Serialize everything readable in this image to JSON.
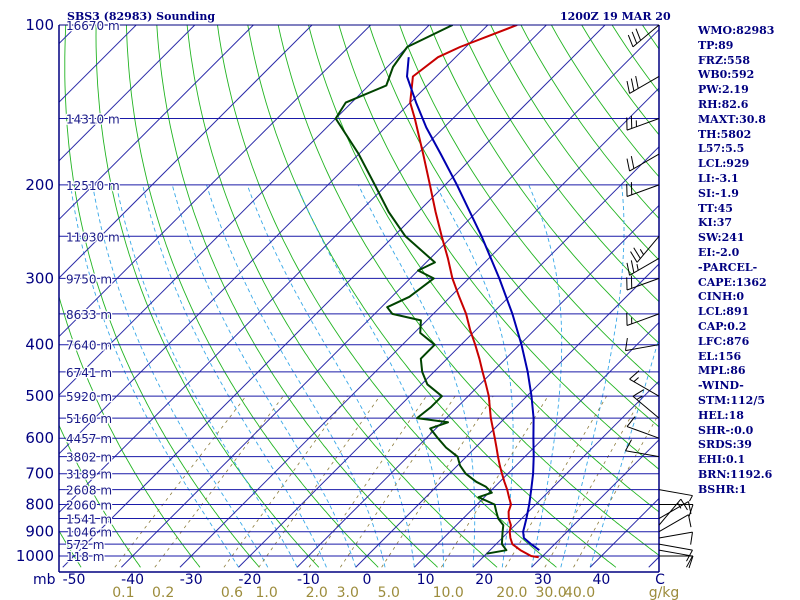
{
  "header": {
    "station": "SBS3 (82983) Sounding",
    "time": "1200Z 19 MAR 20"
  },
  "colors": {
    "frame": "#000080",
    "isobar": "#1a1aa8",
    "isotherm": "#2a2aa8",
    "dry_adiabat": "#22b422",
    "moist_adiabat": "#38a8e8",
    "mixing_ratio": "#8c7c3c",
    "temperature": "#c80000",
    "dewpoint": "#004400",
    "parcel": "#0000b0",
    "wind": "#000000",
    "label_height": "#1a1a88",
    "label_mixing": "#9c8c3c"
  },
  "axes": {
    "units_label": "mb",
    "mixing_unit": "g/kg"
  },
  "side_panel": [
    "WMO:82983",
    "TP:89",
    "FRZ:558",
    "WB0:592",
    "PW:2.19",
    "RH:82.6",
    "MAXT:30.8",
    "TH:5802",
    "L57:5.5",
    "LCL:929",
    "LI:-3.1",
    "SI:-1.9",
    "TT:45",
    "KI:37",
    "SW:241",
    "EI:-2.0",
    "-PARCEL-",
    "CAPE:1362",
    "CINH:0",
    "LCL:891",
    "CAP:0.2",
    "LFC:876",
    "EL:156",
    "MPL:86",
    "-WIND-",
    "STM:112/5",
    "HEL:18",
    "SHR-:0.0",
    "SRDS:39",
    "EHI:0.1",
    "BRN:1192.6",
    "BSHR:1"
  ],
  "chart_data": {
    "type": "skew-t",
    "title": "SBS3 (82983) Sounding",
    "subtitle": "1200Z 19 MAR 20",
    "pressure_axis": {
      "label": "mb",
      "range": [
        1000,
        100
      ],
      "scale": "log",
      "ticks": [
        100,
        200,
        300,
        400,
        500,
        600,
        700,
        800,
        900,
        1000
      ]
    },
    "temperature_axis": {
      "unit": "C",
      "ticks": [
        -50,
        -40,
        -30,
        -20,
        -10,
        0,
        10,
        20,
        30,
        40
      ],
      "tick_labels": [
        "-50",
        "-40",
        "-30",
        "-20",
        "-10",
        "0",
        "10",
        "20",
        "30",
        "40"
      ],
      "skew_deg": 45
    },
    "mixing_ratio_axis": {
      "unit": "g/kg",
      "values": [
        0.1,
        0.2,
        0.6,
        1.0,
        2.0,
        3.0,
        5.0,
        10.0,
        20.0,
        30.0,
        40.0
      ],
      "labels": [
        "0.1",
        "0.2",
        "0.6",
        "1.0",
        "2.0",
        "3.0",
        "5.0",
        "10.0",
        "20.0",
        "30.0",
        "40.0"
      ]
    },
    "height_labels": [
      {
        "p": 100,
        "label": "16670 m"
      },
      {
        "p": 150,
        "label": "14310 m"
      },
      {
        "p": 200,
        "label": "12510 m"
      },
      {
        "p": 250,
        "label": "11030 m"
      },
      {
        "p": 300,
        "label": "9750 m"
      },
      {
        "p": 350,
        "label": "8633 m"
      },
      {
        "p": 400,
        "label": "7640 m"
      },
      {
        "p": 450,
        "label": "6741 m"
      },
      {
        "p": 500,
        "label": "5920 m"
      },
      {
        "p": 550,
        "label": "5160 m"
      },
      {
        "p": 600,
        "label": "4457 m"
      },
      {
        "p": 650,
        "label": "3802 m"
      },
      {
        "p": 700,
        "label": "3189 m"
      },
      {
        "p": 750,
        "label": "2608 m"
      },
      {
        "p": 800,
        "label": "2060 m"
      },
      {
        "p": 850,
        "label": "1541 m"
      },
      {
        "p": 900,
        "label": "1046 m"
      },
      {
        "p": 950,
        "label": "572 m"
      },
      {
        "p": 1000,
        "label": "118 m"
      }
    ],
    "series": [
      {
        "name": "Temperature",
        "points": [
          [
            1005,
            29.5
          ],
          [
            1000,
            28.0
          ],
          [
            975,
            25.2
          ],
          [
            950,
            22.8
          ],
          [
            925,
            21.4
          ],
          [
            900,
            20.2
          ],
          [
            875,
            19.3
          ],
          [
            850,
            17.8
          ],
          [
            825,
            16.6
          ],
          [
            800,
            15.8
          ],
          [
            775,
            14.2
          ],
          [
            750,
            12.6
          ],
          [
            725,
            10.8
          ],
          [
            700,
            9.0
          ],
          [
            675,
            7.2
          ],
          [
            650,
            5.4
          ],
          [
            625,
            3.6
          ],
          [
            600,
            1.7
          ],
          [
            575,
            -0.3
          ],
          [
            550,
            -2.4
          ],
          [
            525,
            -4.4
          ],
          [
            500,
            -6.5
          ],
          [
            475,
            -9.0
          ],
          [
            450,
            -11.7
          ],
          [
            425,
            -14.5
          ],
          [
            400,
            -17.6
          ],
          [
            375,
            -21.0
          ],
          [
            350,
            -24.4
          ],
          [
            325,
            -28.5
          ],
          [
            300,
            -32.8
          ],
          [
            275,
            -37.0
          ],
          [
            250,
            -41.8
          ],
          [
            225,
            -47.0
          ],
          [
            200,
            -52.6
          ],
          [
            175,
            -59.0
          ],
          [
            150,
            -66.5
          ],
          [
            140,
            -70.0
          ],
          [
            125,
            -74.0
          ],
          [
            115,
            -73.0
          ],
          [
            110,
            -71.0
          ],
          [
            100,
            -65.0
          ]
        ]
      },
      {
        "name": "Dewpoint",
        "points": [
          [
            990,
            20.0
          ],
          [
            975,
            22.8
          ],
          [
            950,
            21.0
          ],
          [
            925,
            20.0
          ],
          [
            900,
            19.0
          ],
          [
            875,
            18.0
          ],
          [
            850,
            16.0
          ],
          [
            825,
            14.5
          ],
          [
            800,
            13.0
          ],
          [
            775,
            9.0
          ],
          [
            760,
            10.5
          ],
          [
            740,
            8.4
          ],
          [
            725,
            6.0
          ],
          [
            700,
            2.8
          ],
          [
            675,
            0.4
          ],
          [
            650,
            -1.5
          ],
          [
            625,
            -5.0
          ],
          [
            600,
            -8.0
          ],
          [
            575,
            -11.0
          ],
          [
            560,
            -9.0
          ],
          [
            550,
            -15.0
          ],
          [
            525,
            -14.5
          ],
          [
            500,
            -14.5
          ],
          [
            475,
            -19.0
          ],
          [
            450,
            -22.0
          ],
          [
            425,
            -24.5
          ],
          [
            400,
            -24.5
          ],
          [
            380,
            -29.0
          ],
          [
            360,
            -31.0
          ],
          [
            350,
            -37.0
          ],
          [
            340,
            -39.0
          ],
          [
            325,
            -37.0
          ],
          [
            300,
            -36.0
          ],
          [
            290,
            -40.0
          ],
          [
            280,
            -38.5
          ],
          [
            250,
            -48.0
          ],
          [
            225,
            -55.0
          ],
          [
            200,
            -62.0
          ],
          [
            175,
            -70.0
          ],
          [
            150,
            -80.0
          ],
          [
            140,
            -81.0
          ],
          [
            130,
            -77.0
          ],
          [
            120,
            -79.0
          ],
          [
            110,
            -80.0
          ],
          [
            100,
            -76.0
          ]
        ]
      },
      {
        "name": "Parcel",
        "points": [
          [
            975,
            28.4
          ],
          [
            950,
            26.0
          ],
          [
            925,
            23.7
          ],
          [
            900,
            22.5
          ],
          [
            876,
            21.7
          ],
          [
            850,
            20.8
          ],
          [
            800,
            18.9
          ],
          [
            750,
            16.7
          ],
          [
            700,
            14.3
          ],
          [
            650,
            11.5
          ],
          [
            600,
            8.3
          ],
          [
            550,
            4.9
          ],
          [
            500,
            0.8
          ],
          [
            450,
            -4.0
          ],
          [
            400,
            -9.7
          ],
          [
            350,
            -16.5
          ],
          [
            300,
            -24.8
          ],
          [
            250,
            -35.0
          ],
          [
            200,
            -48.0
          ],
          [
            175,
            -56.0
          ],
          [
            156,
            -63.0
          ],
          [
            140,
            -69.0
          ],
          [
            125,
            -75.0
          ],
          [
            115,
            -78.0
          ]
        ]
      }
    ],
    "wind_barbs": [
      {
        "p": 1000,
        "dir": 90,
        "spd": 10
      },
      {
        "p": 975,
        "dir": 100,
        "spd": 10
      },
      {
        "p": 950,
        "dir": 100,
        "spd": 10
      },
      {
        "p": 925,
        "dir": 80,
        "spd": 10
      },
      {
        "p": 900,
        "dir": 60,
        "spd": 10
      },
      {
        "p": 875,
        "dir": 40,
        "spd": 15
      },
      {
        "p": 850,
        "dir": 60,
        "spd": 10
      },
      {
        "p": 800,
        "dir": 90,
        "spd": 10
      },
      {
        "p": 750,
        "dir": 100,
        "spd": 5
      },
      {
        "p": 650,
        "dir": 280,
        "spd": 10
      },
      {
        "p": 600,
        "dir": 290,
        "spd": 10
      },
      {
        "p": 550,
        "dir": 310,
        "spd": 15
      },
      {
        "p": 500,
        "dir": 300,
        "spd": 15
      },
      {
        "p": 400,
        "dir": 260,
        "spd": 10
      },
      {
        "p": 350,
        "dir": 250,
        "spd": 15
      },
      {
        "p": 300,
        "dir": 250,
        "spd": 20
      },
      {
        "p": 275,
        "dir": 240,
        "spd": 25
      },
      {
        "p": 250,
        "dir": 220,
        "spd": 25
      },
      {
        "p": 200,
        "dir": 250,
        "spd": 20
      },
      {
        "p": 175,
        "dir": 240,
        "spd": 20
      },
      {
        "p": 150,
        "dir": 250,
        "spd": 25
      },
      {
        "p": 125,
        "dir": 240,
        "spd": 30
      },
      {
        "p": 100,
        "dir": 230,
        "spd": 30
      }
    ],
    "grid": true
  }
}
